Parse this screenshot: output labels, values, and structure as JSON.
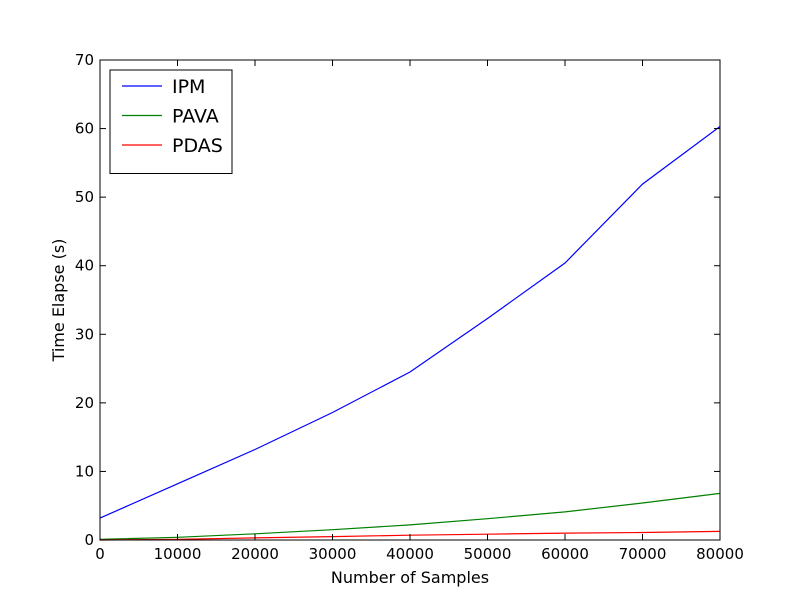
{
  "chart_data": {
    "type": "line",
    "title": "",
    "xlabel": "Number of Samples",
    "ylabel": "Time Elapse (s)",
    "xlim": [
      0,
      80000
    ],
    "ylim": [
      0,
      70
    ],
    "xticks": [
      0,
      10000,
      20000,
      30000,
      40000,
      50000,
      60000,
      70000,
      80000
    ],
    "yticks": [
      0,
      10,
      20,
      30,
      40,
      50,
      60,
      70
    ],
    "grid": false,
    "legend_position": "top-left",
    "series": [
      {
        "name": "IPM",
        "color": "#0000ff",
        "x": [
          0,
          10000,
          20000,
          30000,
          40000,
          50000,
          60000,
          70000,
          80000
        ],
        "y": [
          3.2,
          8.2,
          13.2,
          18.6,
          24.5,
          32.3,
          40.4,
          51.9,
          60.3
        ]
      },
      {
        "name": "PAVA",
        "color": "#008000",
        "x": [
          0,
          10000,
          20000,
          30000,
          40000,
          50000,
          60000,
          70000,
          80000
        ],
        "y": [
          0.1,
          0.4,
          0.9,
          1.5,
          2.2,
          3.1,
          4.1,
          5.4,
          6.8
        ]
      },
      {
        "name": "PDAS",
        "color": "#ff0000",
        "x": [
          0,
          10000,
          20000,
          30000,
          40000,
          50000,
          60000,
          70000,
          80000
        ],
        "y": [
          0.0,
          0.1,
          0.3,
          0.5,
          0.7,
          0.85,
          1.0,
          1.1,
          1.25
        ]
      }
    ]
  }
}
